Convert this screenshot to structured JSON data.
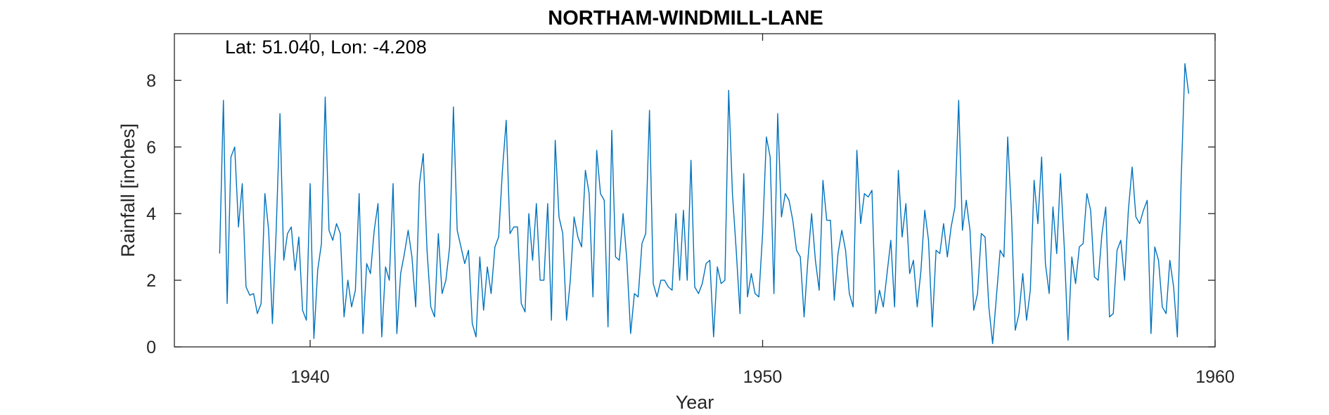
{
  "chart_data": {
    "type": "line",
    "title": "NORTHAM-WINDMILL-LANE",
    "annotation": "Lat: 51.040, Lon: -4.208",
    "xlabel": "Year",
    "ylabel": "Rainfall [inches]",
    "xlim": [
      1937,
      1960
    ],
    "ylim": [
      0,
      9.4
    ],
    "xticks": [
      1940,
      1950,
      1960
    ],
    "yticks": [
      0,
      2,
      4,
      6,
      8
    ],
    "grid": false,
    "series_color": "#0072BD",
    "x_start": 1938.0,
    "x_step": 0.0833333,
    "values": [
      2.8,
      7.4,
      1.3,
      5.7,
      6.0,
      3.6,
      4.9,
      1.8,
      1.55,
      1.6,
      1.0,
      1.3,
      4.6,
      3.5,
      0.7,
      3.5,
      7.0,
      2.6,
      3.4,
      3.6,
      2.3,
      3.3,
      1.1,
      0.8,
      4.9,
      0.25,
      2.3,
      3.1,
      7.5,
      3.5,
      3.2,
      3.7,
      3.4,
      0.9,
      2.0,
      1.2,
      1.7,
      4.6,
      0.4,
      2.5,
      2.2,
      3.5,
      4.3,
      0.3,
      2.4,
      2.0,
      4.9,
      0.4,
      2.2,
      2.8,
      3.5,
      2.7,
      1.2,
      4.9,
      5.8,
      2.9,
      1.2,
      0.9,
      3.4,
      1.6,
      2.0,
      3.0,
      7.2,
      3.5,
      3.0,
      2.5,
      2.9,
      0.7,
      0.3,
      2.7,
      1.1,
      2.4,
      1.6,
      3.0,
      3.3,
      5.3,
      6.8,
      3.4,
      3.6,
      3.6,
      1.3,
      1.05,
      4.0,
      2.6,
      4.3,
      2.0,
      2.0,
      4.3,
      0.8,
      6.2,
      3.9,
      3.4,
      0.8,
      2.0,
      3.9,
      3.3,
      3.0,
      5.3,
      4.6,
      1.5,
      5.9,
      4.6,
      4.4,
      0.6,
      6.5,
      2.7,
      2.6,
      4.0,
      2.6,
      0.4,
      1.6,
      1.5,
      3.1,
      3.4,
      7.1,
      1.9,
      1.5,
      2.0,
      2.0,
      1.8,
      1.7,
      4.0,
      2.0,
      4.1,
      2.0,
      5.6,
      1.8,
      1.6,
      1.9,
      2.5,
      2.6,
      0.3,
      2.4,
      1.9,
      2.0,
      7.7,
      4.6,
      2.9,
      1.0,
      5.2,
      1.5,
      2.2,
      1.6,
      1.5,
      3.4,
      6.3,
      5.7,
      1.6,
      7.0,
      3.9,
      4.6,
      4.4,
      3.8,
      2.9,
      2.7,
      0.9,
      2.6,
      4.0,
      2.6,
      1.7,
      5.0,
      3.8,
      3.8,
      1.4,
      2.8,
      3.5,
      2.9,
      1.6,
      1.2,
      5.9,
      3.7,
      4.6,
      4.5,
      4.7,
      1.0,
      1.7,
      1.2,
      2.2,
      3.2,
      1.2,
      5.3,
      3.3,
      4.3,
      2.2,
      2.6,
      1.2,
      2.3,
      4.1,
      3.2,
      0.6,
      2.9,
      2.8,
      3.7,
      2.7,
      3.6,
      4.2,
      7.4,
      3.5,
      4.4,
      3.5,
      1.1,
      1.6,
      3.4,
      3.3,
      1.2,
      0.1,
      1.5,
      2.9,
      2.7,
      6.3,
      4.0,
      0.5,
      1.0,
      2.2,
      0.8,
      1.7,
      5.0,
      3.7,
      5.7,
      2.5,
      1.6,
      4.2,
      2.8,
      5.2,
      3.0,
      0.2,
      2.7,
      1.9,
      3.0,
      3.1,
      4.6,
      4.1,
      2.1,
      2.0,
      3.4,
      4.2,
      0.9,
      1.0,
      2.9,
      3.2,
      2.0,
      4.1,
      5.4,
      3.9,
      3.7,
      4.1,
      4.4,
      0.4,
      3.0,
      2.6,
      1.2,
      1.0,
      2.6,
      1.8,
      0.3,
      5.0,
      8.5,
      7.6
    ]
  }
}
